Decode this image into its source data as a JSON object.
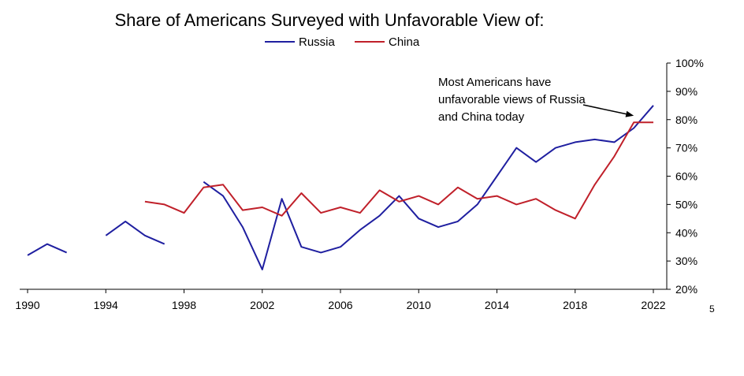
{
  "chart_data": {
    "type": "line",
    "title": "Share of Americans Surveyed with Unfavorable View of:",
    "xlabel": "",
    "ylabel": "",
    "xlim": [
      1990,
      2022
    ],
    "ylim": [
      20,
      100
    ],
    "x_ticks": [
      1990,
      1994,
      1998,
      2002,
      2006,
      2010,
      2014,
      2018,
      2022
    ],
    "x_tick_labels": [
      "1990",
      "1994",
      "1998",
      "2002",
      "2006",
      "2010",
      "2014",
      "2018",
      "2022"
    ],
    "y_ticks": [
      20,
      30,
      40,
      50,
      60,
      70,
      80,
      90,
      100
    ],
    "y_tick_labels": [
      "20%",
      "30%",
      "40%",
      "50%",
      "60%",
      "70%",
      "80%",
      "90%",
      "100%"
    ],
    "y_axis_side": "right",
    "grid": false,
    "legend_position": "top-center",
    "series": [
      {
        "name": "Russia",
        "color": "#1f1fa0",
        "x": [
          1990,
          1991,
          1992,
          1993,
          1994,
          1995,
          1996,
          1997,
          1998,
          1999,
          2000,
          2001,
          2002,
          2003,
          2004,
          2005,
          2006,
          2007,
          2008,
          2009,
          2010,
          2011,
          2012,
          2013,
          2014,
          2015,
          2016,
          2017,
          2018,
          2019,
          2020,
          2021,
          2022
        ],
        "values": [
          32,
          36,
          33,
          null,
          39,
          44,
          39,
          36,
          null,
          58,
          53,
          42,
          27,
          52,
          35,
          33,
          35,
          41,
          46,
          53,
          45,
          42,
          44,
          50,
          60,
          70,
          65,
          70,
          72,
          73,
          72,
          77,
          85
        ]
      },
      {
        "name": "China",
        "color": "#c0202a",
        "x": [
          1990,
          1991,
          1992,
          1993,
          1994,
          1995,
          1996,
          1997,
          1998,
          1999,
          2000,
          2001,
          2002,
          2003,
          2004,
          2005,
          2006,
          2007,
          2008,
          2009,
          2010,
          2011,
          2012,
          2013,
          2014,
          2015,
          2016,
          2017,
          2018,
          2019,
          2020,
          2021,
          2022
        ],
        "values": [
          null,
          null,
          null,
          null,
          null,
          null,
          51,
          50,
          47,
          56,
          57,
          48,
          49,
          46,
          54,
          47,
          49,
          47,
          55,
          51,
          53,
          50,
          56,
          52,
          53,
          50,
          52,
          48,
          45,
          57,
          67,
          79,
          79
        ]
      }
    ],
    "annotations": [
      {
        "lines": [
          "Most Americans have",
          "unfavorable views of Russia",
          "and China today"
        ],
        "arrow_points_to": [
          2021,
          80
        ]
      }
    ]
  },
  "page_number": "5"
}
